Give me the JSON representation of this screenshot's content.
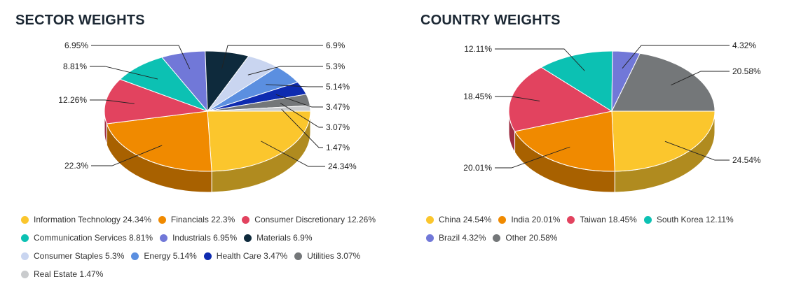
{
  "sector": {
    "title": "SECTOR WEIGHTS",
    "chart_data": {
      "type": "pie",
      "title": "SECTOR WEIGHTS",
      "categories": [
        "Information Technology",
        "Financials",
        "Consumer Discretionary",
        "Communication Services",
        "Industrials",
        "Materials",
        "Consumer Staples",
        "Energy",
        "Health Care",
        "Utilities",
        "Real Estate"
      ],
      "values": [
        24.34,
        22.3,
        12.26,
        8.81,
        6.95,
        6.9,
        5.3,
        5.14,
        3.47,
        3.07,
        1.47
      ],
      "value_labels": [
        "24.34%",
        "22.3%",
        "12.26%",
        "8.81%",
        "6.95%",
        "6.9%",
        "5.3%",
        "5.14%",
        "3.47%",
        "3.07%",
        "1.47%"
      ],
      "legend": [
        "Information Technology 24.34%",
        "Financials 22.3%",
        "Consumer Discretionary 12.26%",
        "Communication Services 8.81%",
        "Industrials 6.95%",
        "Materials 6.9%",
        "Consumer Staples 5.3%",
        "Energy 5.14%",
        "Health Care 3.47%",
        "Utilities 3.07%",
        "Real Estate 1.47%"
      ],
      "colors": [
        "#fbc62d",
        "#f08a00",
        "#e2435f",
        "#0cc1b3",
        "#7178d8",
        "#0e2a3c",
        "#c9d5f0",
        "#5b8fe0",
        "#0e2bb0",
        "#747779",
        "#c9cbcd"
      ],
      "legend_position": "bottom"
    }
  },
  "country": {
    "title": "COUNTRY WEIGHTS",
    "chart_data": {
      "type": "pie",
      "title": "COUNTRY WEIGHTS",
      "categories": [
        "China",
        "India",
        "Taiwan",
        "South Korea",
        "Brazil",
        "Other"
      ],
      "values": [
        24.54,
        20.01,
        18.45,
        12.11,
        4.32,
        20.58
      ],
      "value_labels": [
        "24.54%",
        "20.01%",
        "18.45%",
        "12.11%",
        "4.32%",
        "20.58%"
      ],
      "legend": [
        "China 24.54%",
        "India 20.01%",
        "Taiwan 18.45%",
        "South Korea 12.11%",
        "Brazil 4.32%",
        "Other 20.58%"
      ],
      "colors": [
        "#fbc62d",
        "#f08a00",
        "#e2435f",
        "#0cc1b3",
        "#7178d8",
        "#747779"
      ],
      "legend_position": "bottom"
    }
  }
}
